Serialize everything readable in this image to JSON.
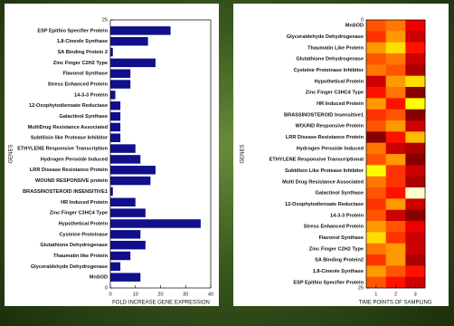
{
  "chart_data": [
    {
      "type": "barh",
      "categories": [
        "ESP Epithio Specifier Protein",
        "1,8-Cineole Synthase",
        "SA Binding Protein 2",
        "Zinc Finger C2H2 Type",
        "Flavonol Synthase",
        "Stress Enhanced Protein",
        "14-3-3 Protein",
        "12-Oxophytodienoate Reductase",
        "Galactinol Synthase",
        "MultiDrug Resistance Associated",
        "Subtilisin like Protease Inhibitor",
        "ETHYLENE Responsive Transcription",
        "Hydrogen Peroxide Induced",
        "LRR Disease Resistance Protein",
        "WOUND RESPONSIVE protein",
        "BRASSINOSTEROID INSENSITIVE1",
        "HR Induced Protein",
        "Zinc Finger C3HC4 Type",
        "Hypothetical Protein",
        "Cysteine Proteinase",
        "Glutathione Dehydrogenase",
        "Thaumatin like Protein",
        "Glyceraldehyde Dehydrogenase",
        "MnSOD"
      ],
      "values": [
        24,
        15,
        1,
        18,
        8,
        8,
        2,
        4,
        4,
        4,
        4,
        10,
        12,
        18,
        16,
        1,
        10,
        14,
        36,
        12,
        14,
        8,
        4,
        12
      ],
      "color": "#10108a",
      "xlabel": "FOLD INCREASE GENE EXPRESSION",
      "ylabel": "GENES",
      "xlim": [
        0,
        40
      ],
      "xticks": [
        0,
        10,
        20,
        30,
        40
      ],
      "ylim": [
        0,
        25
      ],
      "yticks": [
        0,
        25
      ]
    },
    {
      "type": "heatmap",
      "categories": [
        "MnSOD",
        "Glyceraldehyde Dehydrogenase",
        "Thaumatin Like Protein",
        "Glutathione Dehydrogenase",
        "Cysteine Proteinase Inhibitor",
        "Hypothetical Protein",
        "Zinc Finger C3HC4 Type",
        "HR Induced Protein",
        "BRASSINOSTEROID Insensitive1",
        "WOUND Responsive Protein",
        "LRR Disease Resistance Protein",
        "Hydrogen Peroxide Induced",
        "ETHYLENE Responsive Transcriptional",
        "Subtilisin Like Protease Inhibitor",
        "Multi Drug Resistance Associated",
        "Galactinol Synthase",
        "12-Oxophytodienoate Reductase",
        "14-3-3 Protein",
        "Stress Enhanced Protein",
        "Flavonol Synthase",
        "Zinc Finger C2H2 Type",
        "SA Binding Protein2",
        "1,8-Cineole Synthase",
        "ESP Epithio Specifier Protein"
      ],
      "values": [
        [
          0.5,
          0.55,
          0.35
        ],
        [
          0.45,
          0.6,
          0.3
        ],
        [
          0.6,
          0.7,
          0.4
        ],
        [
          0.5,
          0.55,
          0.3
        ],
        [
          0.55,
          0.5,
          0.25
        ],
        [
          0.3,
          0.6,
          0.7
        ],
        [
          0.4,
          0.55,
          0.2
        ],
        [
          0.6,
          0.4,
          0.75
        ],
        [
          0.45,
          0.5,
          0.2
        ],
        [
          0.5,
          0.6,
          0.3
        ],
        [
          0.2,
          0.4,
          0.65
        ],
        [
          0.55,
          0.3,
          0.25
        ],
        [
          0.5,
          0.6,
          0.2
        ],
        [
          0.75,
          0.45,
          0.3
        ],
        [
          0.55,
          0.45,
          0.25
        ],
        [
          0.5,
          0.4,
          0.95
        ],
        [
          0.45,
          0.6,
          0.3
        ],
        [
          0.5,
          0.3,
          0.2
        ],
        [
          0.6,
          0.5,
          0.35
        ],
        [
          0.7,
          0.45,
          0.3
        ],
        [
          0.55,
          0.6,
          0.3
        ],
        [
          0.45,
          0.6,
          0.25
        ],
        [
          0.6,
          0.5,
          0.4
        ],
        [
          0.5,
          0.4,
          0.3
        ]
      ],
      "colormap": "hot",
      "clim": [
        0,
        1
      ],
      "xlabel": "TIME POINTS OF SAMPLING",
      "ylabel": "GENES",
      "xlim": [
        0.5,
        3.5
      ],
      "xticks": [
        1,
        2,
        3
      ],
      "ylim": [
        0,
        25
      ],
      "yticks": [
        0,
        25
      ],
      "yinverted": true
    }
  ]
}
